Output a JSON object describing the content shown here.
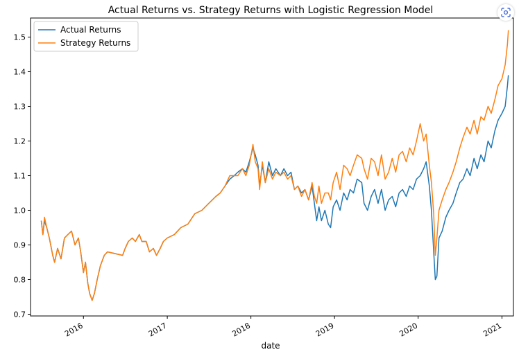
{
  "chart_data": {
    "type": "line",
    "title": "Actual Returns vs. Strategy Returns with Logistic Regression Model",
    "xlabel": "date",
    "ylabel": "",
    "xlim": [
      "2015-05-15",
      "2021-02-20"
    ],
    "ylim": [
      0.695,
      1.555
    ],
    "yticks": [
      0.7,
      0.8,
      0.9,
      1.0,
      1.1,
      1.2,
      1.3,
      1.4,
      1.5
    ],
    "ytick_labels": [
      "0.7",
      "0.8",
      "0.9",
      "1.0",
      "1.1",
      "1.2",
      "1.3",
      "1.4",
      "1.5"
    ],
    "xticks": [
      "2016-01-01",
      "2017-01-01",
      "2018-01-01",
      "2019-01-01",
      "2020-01-01",
      "2021-01-01"
    ],
    "xtick_labels": [
      "2016",
      "2017",
      "2018",
      "2019",
      "2020",
      "2021"
    ],
    "legend_position": "upper-left",
    "grid": false,
    "series": [
      {
        "name": "Actual Returns",
        "color": "#1f77b4",
        "x": [
          "2015-07-01",
          "2015-07-08",
          "2015-07-15",
          "2015-07-25",
          "2015-08-05",
          "2015-08-20",
          "2015-08-28",
          "2015-09-10",
          "2015-09-25",
          "2015-10-10",
          "2015-10-25",
          "2015-11-10",
          "2015-11-25",
          "2015-12-10",
          "2015-12-20",
          "2016-01-01",
          "2016-01-10",
          "2016-01-20",
          "2016-01-28",
          "2016-02-08",
          "2016-02-18",
          "2016-03-01",
          "2016-03-15",
          "2016-04-01",
          "2016-04-15",
          "2016-06-20",
          "2016-07-01",
          "2016-07-15",
          "2016-08-01",
          "2016-08-15",
          "2016-09-01",
          "2016-09-12",
          "2016-10-01",
          "2016-10-15",
          "2016-11-01",
          "2016-11-15",
          "2016-12-01",
          "2016-12-15",
          "2017-01-01",
          "2017-02-01",
          "2017-03-01",
          "2017-04-01",
          "2017-05-01",
          "2017-06-01",
          "2017-07-01",
          "2017-08-01",
          "2017-08-20",
          "2017-09-10",
          "2017-10-01",
          "2017-10-20",
          "2017-11-05",
          "2017-11-25",
          "2017-12-10",
          "2017-12-25",
          "2018-01-10",
          "2018-01-20",
          "2018-02-01",
          "2018-02-08",
          "2018-02-20",
          "2018-03-05",
          "2018-03-20",
          "2018-04-05",
          "2018-04-20",
          "2018-05-10",
          "2018-05-25",
          "2018-06-10",
          "2018-06-25",
          "2018-07-10",
          "2018-07-25",
          "2018-08-10",
          "2018-08-25",
          "2018-09-10",
          "2018-09-25",
          "2018-10-05",
          "2018-10-15",
          "2018-10-25",
          "2018-11-05",
          "2018-11-20",
          "2018-12-05",
          "2018-12-15",
          "2018-12-26",
          "2019-01-10",
          "2019-01-25",
          "2019-02-10",
          "2019-02-25",
          "2019-03-10",
          "2019-03-25",
          "2019-04-10",
          "2019-04-30",
          "2019-05-10",
          "2019-05-25",
          "2019-06-10",
          "2019-06-25",
          "2019-07-10",
          "2019-07-25",
          "2019-08-10",
          "2019-08-25",
          "2019-09-10",
          "2019-09-25",
          "2019-10-10",
          "2019-10-25",
          "2019-11-10",
          "2019-11-25",
          "2019-12-10",
          "2019-12-25",
          "2020-01-10",
          "2020-01-25",
          "2020-02-05",
          "2020-02-19",
          "2020-02-28",
          "2020-03-09",
          "2020-03-16",
          "2020-03-23",
          "2020-04-01",
          "2020-04-15",
          "2020-05-01",
          "2020-05-15",
          "2020-06-01",
          "2020-06-15",
          "2020-07-01",
          "2020-07-15",
          "2020-08-01",
          "2020-08-15",
          "2020-09-01",
          "2020-09-15",
          "2020-10-01",
          "2020-10-15",
          "2020-11-01",
          "2020-11-15",
          "2020-12-01",
          "2020-12-15",
          "2021-01-01",
          "2021-01-15",
          "2021-01-25",
          "2021-01-29"
        ],
        "y": [
          0.97,
          0.93,
          0.97,
          0.95,
          0.92,
          0.87,
          0.85,
          0.89,
          0.86,
          0.92,
          0.93,
          0.94,
          0.9,
          0.92,
          0.88,
          0.82,
          0.85,
          0.79,
          0.76,
          0.74,
          0.76,
          0.8,
          0.84,
          0.87,
          0.88,
          0.87,
          0.89,
          0.91,
          0.92,
          0.91,
          0.93,
          0.91,
          0.91,
          0.88,
          0.89,
          0.87,
          0.89,
          0.91,
          0.92,
          0.93,
          0.95,
          0.96,
          0.99,
          1.0,
          1.02,
          1.04,
          1.05,
          1.07,
          1.09,
          1.1,
          1.11,
          1.12,
          1.11,
          1.14,
          1.18,
          1.16,
          1.13,
          1.07,
          1.13,
          1.08,
          1.14,
          1.1,
          1.12,
          1.1,
          1.12,
          1.1,
          1.11,
          1.06,
          1.07,
          1.05,
          1.06,
          1.03,
          1.07,
          1.02,
          0.97,
          1.01,
          0.97,
          1.0,
          0.96,
          0.95,
          1.01,
          1.03,
          1.0,
          1.05,
          1.03,
          1.06,
          1.05,
          1.09,
          1.08,
          1.02,
          1.0,
          1.04,
          1.06,
          1.02,
          1.06,
          1.0,
          1.03,
          1.04,
          1.01,
          1.05,
          1.06,
          1.04,
          1.07,
          1.06,
          1.09,
          1.1,
          1.12,
          1.14,
          1.07,
          1.0,
          0.88,
          0.8,
          0.81,
          0.92,
          0.94,
          0.98,
          1.0,
          1.02,
          1.05,
          1.08,
          1.09,
          1.12,
          1.1,
          1.15,
          1.12,
          1.16,
          1.14,
          1.2,
          1.18,
          1.23,
          1.26,
          1.28,
          1.3,
          1.36,
          1.39
        ]
      },
      {
        "name": "Strategy Returns",
        "color": "#ff7f0e",
        "x": [
          "2015-07-01",
          "2015-07-08",
          "2015-07-15",
          "2015-07-25",
          "2015-08-05",
          "2015-08-20",
          "2015-08-28",
          "2015-09-10",
          "2015-09-25",
          "2015-10-10",
          "2015-10-25",
          "2015-11-10",
          "2015-11-25",
          "2015-12-10",
          "2015-12-20",
          "2016-01-01",
          "2016-01-10",
          "2016-01-20",
          "2016-01-28",
          "2016-02-08",
          "2016-02-18",
          "2016-03-01",
          "2016-03-15",
          "2016-04-01",
          "2016-04-15",
          "2016-06-20",
          "2016-07-01",
          "2016-07-15",
          "2016-08-01",
          "2016-08-15",
          "2016-09-01",
          "2016-09-12",
          "2016-10-01",
          "2016-10-15",
          "2016-11-01",
          "2016-11-15",
          "2016-12-01",
          "2016-12-15",
          "2017-01-01",
          "2017-02-01",
          "2017-03-01",
          "2017-04-01",
          "2017-05-01",
          "2017-06-01",
          "2017-07-01",
          "2017-08-01",
          "2017-08-20",
          "2017-09-10",
          "2017-10-01",
          "2017-10-20",
          "2017-11-05",
          "2017-11-25",
          "2017-12-10",
          "2017-12-25",
          "2018-01-10",
          "2018-01-20",
          "2018-02-01",
          "2018-02-08",
          "2018-02-20",
          "2018-03-05",
          "2018-03-20",
          "2018-04-05",
          "2018-04-20",
          "2018-05-10",
          "2018-05-25",
          "2018-06-10",
          "2018-06-25",
          "2018-07-10",
          "2018-07-25",
          "2018-08-10",
          "2018-08-25",
          "2018-09-10",
          "2018-09-25",
          "2018-10-05",
          "2018-10-15",
          "2018-10-25",
          "2018-11-05",
          "2018-11-20",
          "2018-12-05",
          "2018-12-15",
          "2018-12-26",
          "2019-01-10",
          "2019-01-25",
          "2019-02-10",
          "2019-02-25",
          "2019-03-10",
          "2019-03-25",
          "2019-04-10",
          "2019-04-30",
          "2019-05-10",
          "2019-05-25",
          "2019-06-10",
          "2019-06-25",
          "2019-07-10",
          "2019-07-25",
          "2019-08-10",
          "2019-08-25",
          "2019-09-10",
          "2019-09-25",
          "2019-10-10",
          "2019-10-25",
          "2019-11-10",
          "2019-11-25",
          "2019-12-10",
          "2019-12-25",
          "2020-01-10",
          "2020-01-25",
          "2020-02-05",
          "2020-02-19",
          "2020-02-28",
          "2020-03-09",
          "2020-03-16",
          "2020-03-23",
          "2020-04-01",
          "2020-04-15",
          "2020-05-01",
          "2020-05-15",
          "2020-06-01",
          "2020-06-15",
          "2020-07-01",
          "2020-07-15",
          "2020-08-01",
          "2020-08-15",
          "2020-09-01",
          "2020-09-15",
          "2020-10-01",
          "2020-10-15",
          "2020-11-01",
          "2020-11-15",
          "2020-12-01",
          "2020-12-15",
          "2021-01-01",
          "2021-01-15",
          "2021-01-25",
          "2021-01-29"
        ],
        "y": [
          0.97,
          0.93,
          0.98,
          0.95,
          0.92,
          0.87,
          0.85,
          0.89,
          0.86,
          0.92,
          0.93,
          0.94,
          0.9,
          0.92,
          0.88,
          0.82,
          0.85,
          0.79,
          0.76,
          0.74,
          0.76,
          0.8,
          0.84,
          0.87,
          0.88,
          0.87,
          0.89,
          0.91,
          0.92,
          0.91,
          0.93,
          0.91,
          0.91,
          0.88,
          0.89,
          0.87,
          0.89,
          0.91,
          0.92,
          0.93,
          0.95,
          0.96,
          0.99,
          1.0,
          1.02,
          1.04,
          1.05,
          1.07,
          1.1,
          1.1,
          1.1,
          1.12,
          1.1,
          1.13,
          1.19,
          1.14,
          1.12,
          1.06,
          1.14,
          1.08,
          1.12,
          1.09,
          1.11,
          1.1,
          1.11,
          1.09,
          1.1,
          1.06,
          1.07,
          1.04,
          1.06,
          1.03,
          1.08,
          1.04,
          1.02,
          1.07,
          1.02,
          1.05,
          1.05,
          1.03,
          1.08,
          1.11,
          1.06,
          1.13,
          1.12,
          1.1,
          1.13,
          1.16,
          1.15,
          1.12,
          1.09,
          1.15,
          1.14,
          1.1,
          1.16,
          1.09,
          1.11,
          1.15,
          1.11,
          1.16,
          1.17,
          1.14,
          1.18,
          1.16,
          1.2,
          1.25,
          1.2,
          1.22,
          1.13,
          1.08,
          0.99,
          0.87,
          0.92,
          1.0,
          1.03,
          1.06,
          1.08,
          1.11,
          1.14,
          1.18,
          1.21,
          1.24,
          1.22,
          1.26,
          1.22,
          1.27,
          1.26,
          1.3,
          1.28,
          1.32,
          1.36,
          1.38,
          1.42,
          1.48,
          1.52
        ]
      }
    ]
  },
  "ui": {
    "lens_icon": "google-lens-icon"
  }
}
